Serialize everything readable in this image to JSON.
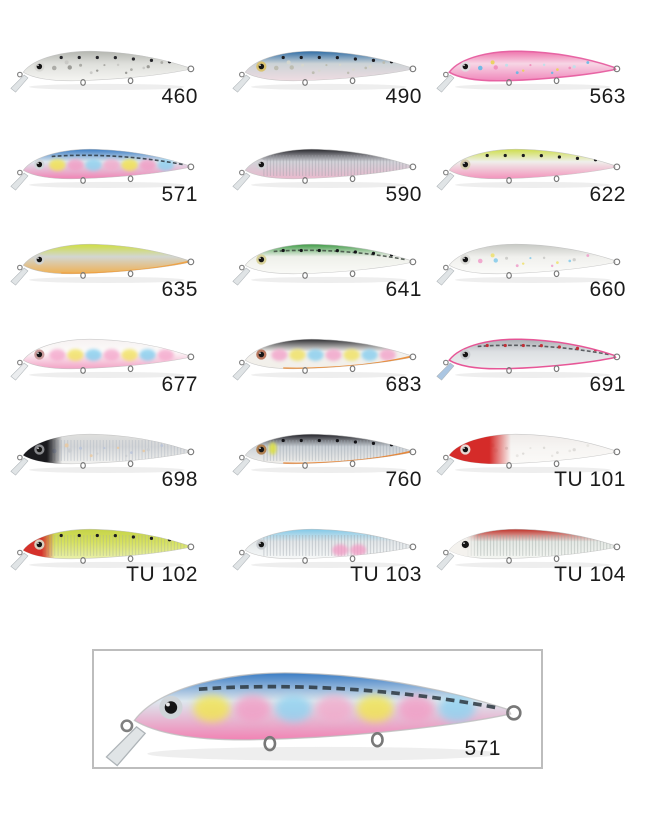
{
  "styles": {
    "background": "#ffffff",
    "label_color": "#1b1b1b",
    "box_border_color": "#bdbdbd"
  },
  "catalog": {
    "items": [
      {
        "code": "460",
        "back": "#b4b6b0",
        "side": "#dedfdb",
        "belly": "#f5f5f2",
        "dots": "#26262a",
        "glitter": [
          "#a2a29e",
          "#c6c6c2",
          "#8e8e8a"
        ],
        "eyeRing": "#d8d8d4"
      },
      {
        "code": "490",
        "back": "#2f6da6",
        "side": "#ccd3d6",
        "belly": "#efdce2",
        "dots": "#1c1c20",
        "glitter": [
          "#b9b9aa",
          "#d8d8cc"
        ],
        "eyeRing": "#d9c270"
      },
      {
        "code": "563",
        "back": "#ee74ac",
        "side": "#f7d6e5",
        "belly": "#f088bb",
        "outline": "#e85a9e",
        "glitter": [
          "#5ab8e6",
          "#e8d44e",
          "#ef8ab8",
          "#b8e0ea"
        ],
        "eyeRing": "#e0dce0"
      },
      {
        "code": "571",
        "back": "#3a7cc4",
        "side": "#dde7ee",
        "belly": "#f183b4",
        "lateral": "#2c3740",
        "blotches": [
          "#f2e44e",
          "#f29cc4",
          "#8ed2f0",
          "#f2aacb"
        ],
        "eyeRing": "#cfd4d8"
      },
      {
        "code": "590",
        "back": "#27272c",
        "side": "#d2d3d9",
        "belly": "#e9b9cd",
        "scales": "#9b9ba4",
        "eyeRing": "#d0d0d4"
      },
      {
        "code": "622",
        "back": "#cede4b",
        "side": "#efefeb",
        "belly": "#f392bb",
        "dots": "#1b1b1f",
        "eyeRing": "#d6ccae"
      },
      {
        "code": "635",
        "back": "#cfdf40",
        "side": "#d2d6d1",
        "belly": "#f0b052",
        "bellyEdge": "#ef9f3e",
        "eyeRing": "#d2d2ce"
      },
      {
        "code": "641",
        "back": "#3f9b46",
        "side": "#eef0ea",
        "belly": "#fafaf7",
        "dots": "#141418",
        "lateral": "#3f4a42",
        "eyeRing": "#d8d29a"
      },
      {
        "code": "660",
        "back": "#c7c9c4",
        "side": "#f0f0ed",
        "belly": "#fbfbf9",
        "glitter": [
          "#ef9cc9",
          "#efe16c",
          "#82c9ea",
          "#c9c9c5"
        ],
        "eyeRing": "#dcdcd8"
      },
      {
        "code": "677",
        "back": "#f6f1f1",
        "side": "#fcfbfa",
        "belly": "#f2a2c5",
        "blotches": [
          "#f4a8cc",
          "#f1e25e",
          "#84cdee"
        ],
        "eyeRing": "#c89a9a",
        "lip": "#e4e7ea"
      },
      {
        "code": "683",
        "back": "#2e2e32",
        "side": "#f2f1ee",
        "belly": "#f2efe9",
        "bellyEdge": "#e8872f",
        "blotches": [
          "#f2a2c9",
          "#efe160",
          "#86cdee"
        ],
        "eyeRing": "#b87860"
      },
      {
        "code": "691",
        "back": "#a9adb2",
        "side": "#dcdfe2",
        "belly": "#edeff0",
        "outline": "#e8488f",
        "dots": "#c03038",
        "lateral": "#45484c",
        "lip": "#8fb3d8",
        "eyeRing": "#c8ccd0"
      },
      {
        "code": "698",
        "back": "#dfdfdd",
        "side": "#d5d7d9",
        "belly": "#f2f2f0",
        "head": {
          "color": "#1a1a1e",
          "len": 0.21
        },
        "scales": "#aab2be",
        "glitter": [
          "#b9c3d9",
          "#e9c9a1",
          "#c9cdd1"
        ],
        "eyeRing": "#88898d"
      },
      {
        "code": "760",
        "back": "#222228",
        "side": "#cbd1d7",
        "belly": "#f1efeb",
        "bellyEdge": "#e8802b",
        "dots": "#121216",
        "scales": "#9ba5af",
        "gill": "#dde042",
        "eyeRing": "#b08050"
      },
      {
        "code": "TU 101",
        "back": "#efebe9",
        "side": "#f6f4f2",
        "belly": "#fbfaf8",
        "head": {
          "color": "#d52b29",
          "len": 0.3
        },
        "glitter": [
          "#e5e3df",
          "#d9d7d3"
        ],
        "eyeRing": "#e8d8d4"
      },
      {
        "code": "TU 102",
        "back": "#c5d349",
        "side": "#d6e15c",
        "belly": "#e9f0ab",
        "head": {
          "color": "#d5312b",
          "len": 0.18
        },
        "dots": "#1b1b1f",
        "scales": "#a9b199",
        "eyeRing": "#d8d0c0"
      },
      {
        "code": "TU 103",
        "back": "#7fc9e9",
        "side": "#e3e7e9",
        "belly": "#f6f8f8",
        "scales": "#9aa2aa",
        "blotches": [
          "#f29cc5"
        ],
        "blotchZone": [
          0.58,
          0.74
        ],
        "blotchLow": true,
        "eyeRing": "#c8ccd0"
      },
      {
        "code": "TU 104",
        "back": "#c13129",
        "side": "#e5e9e5",
        "belly": "#f4f6f2",
        "head": {
          "color": "#f4f2ee",
          "len": 0.17
        },
        "scales": "#9aa4a0",
        "eyeRing": "#efece8",
        "pupil": 1.3
      }
    ]
  },
  "detail": {
    "code": "571"
  }
}
